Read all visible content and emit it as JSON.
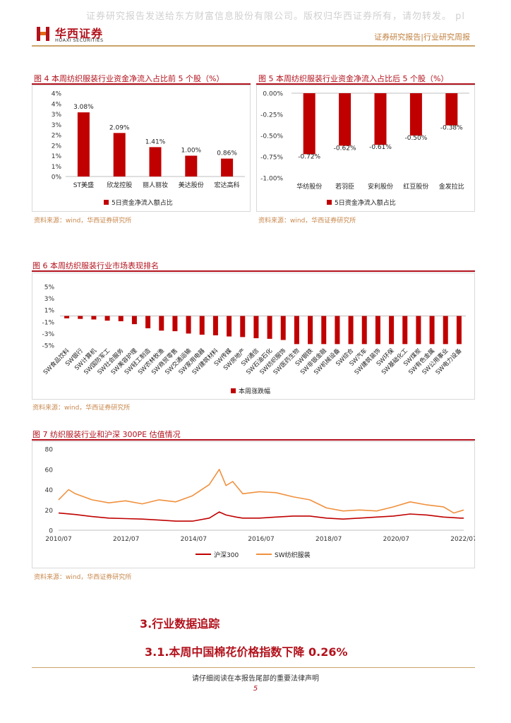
{
  "watermark": "证券研究报告发送给东方财富信息股份有限公司。版权归华西证券所有，请勿转发。 pl",
  "header": {
    "logo_cn": "华西证券",
    "logo_en": "HUAXI SECURITIES",
    "report_type": "证券研究报告|行业研究周报",
    "brand_color": "#b2121c"
  },
  "fig4": {
    "title": "图 4   本周纺织服装行业资金净流入占比前 5 个股（%）",
    "source": "资料来源：wind，华西证券研究所"
  },
  "fig5": {
    "title": "图 5   本周纺织服装行业资金净流入占比后 5 个股（%）",
    "source": "资料来源：wind，华西证券研究所"
  },
  "fig6": {
    "title": "图 6   本周纺织服装行业市场表现排名",
    "source": "资料来源：wind，华西证券研究所"
  },
  "fig7": {
    "title": "图 7   纺织服装行业和沪深 300PE 估值情况",
    "source": "资料来源：wind，华西证券研究所"
  },
  "section": {
    "h1": "3.行业数据追踪",
    "h2": "3.1.本周中国棉花价格指数下降 0.26%"
  },
  "footer": {
    "disclaimer": "请仔细阅读在本报告尾部的重要法律声明",
    "page": "5"
  },
  "chart_data": [
    {
      "id": "fig4",
      "type": "bar",
      "categories": [
        "ST美盛",
        "欣龙控股",
        "丽人丽妆",
        "美达股份",
        "宏达高科"
      ],
      "values": [
        3.08,
        2.09,
        1.41,
        1.0,
        0.86
      ],
      "value_labels": [
        "3.08%",
        "2.09%",
        "1.41%",
        "1.00%",
        "0.86%"
      ],
      "ylim": [
        0,
        4
      ],
      "yticks": [
        "0%",
        "1%",
        "1%",
        "2%",
        "2%",
        "3%",
        "3%",
        "4%",
        "4%"
      ],
      "legend": "5日资金净流入额占比",
      "legend_position": "bottom",
      "color": "#c00000"
    },
    {
      "id": "fig5",
      "type": "bar",
      "categories": [
        "华纺股份",
        "若羽臣",
        "安利股份",
        "红豆股份",
        "金发拉比"
      ],
      "values": [
        -0.72,
        -0.62,
        -0.61,
        -0.5,
        -0.38
      ],
      "value_labels": [
        "-0.72%",
        "-0.62%",
        "-0.61%",
        "-0.50%",
        "-0.38%"
      ],
      "ylim": [
        -1.0,
        0
      ],
      "yticks": [
        "0.00%",
        "-0.25%",
        "-0.50%",
        "-0.75%",
        "-1.00%"
      ],
      "legend": "5日资金净流入额占比",
      "legend_position": "bottom",
      "color": "#c00000"
    },
    {
      "id": "fig6",
      "type": "bar",
      "categories": [
        "SW食品饮料",
        "SW银行",
        "SW计算机",
        "SW国防军工",
        "SW社会服务",
        "SW美容护理",
        "SW轻工制造",
        "SW农林牧渔",
        "SW商贸零售",
        "SW交通运输",
        "SW家用电器",
        "SW建筑材料",
        "SW传媒",
        "SW房地产",
        "SW通信",
        "SW石油石化",
        "SW纺织服饰",
        "SW医药生物",
        "SW钢铁",
        "SW非银金融",
        "SW机械设备",
        "SW综合",
        "SW汽车",
        "SW建筑装饰",
        "SW环保",
        "SW基础化工",
        "SW煤炭",
        "SW有色金属",
        "SW公用事业",
        "SW电力设备"
      ],
      "values": [
        -0.4,
        -0.5,
        -0.6,
        -0.8,
        -0.9,
        -1.4,
        -2.1,
        -2.5,
        -2.6,
        -3.0,
        -3.2,
        -3.3,
        -3.5,
        -3.6,
        -3.8,
        -3.9,
        -4.1,
        -4.8,
        -4.8,
        -4.8,
        -4.8,
        -4.8,
        -4.8,
        -4.8,
        -4.8,
        -4.8,
        -4.8,
        -4.8,
        -4.8,
        -4.8
      ],
      "ylim": [
        -5,
        5
      ],
      "yticks": [
        "5%",
        "3%",
        "1%",
        "-1%",
        "-3%",
        "-5%"
      ],
      "legend": "本周涨跌幅",
      "legend_position": "bottom",
      "color": "#c00000"
    },
    {
      "id": "fig7",
      "type": "line",
      "x_ticks": [
        "2010/07",
        "2012/07",
        "2014/07",
        "2016/07",
        "2018/07",
        "2020/07",
        "2022/07"
      ],
      "ylim": [
        0,
        80
      ],
      "yticks": [
        "0",
        "20",
        "40",
        "60",
        "80"
      ],
      "series": [
        {
          "name": "沪深300",
          "color": "#c00000",
          "x": [
            2010.5,
            2011.0,
            2011.5,
            2012.0,
            2012.5,
            2013.0,
            2013.5,
            2014.0,
            2014.5,
            2015.0,
            2015.3,
            2015.5,
            2015.8,
            2016.0,
            2016.5,
            2017.0,
            2017.5,
            2018.0,
            2018.5,
            2019.0,
            2019.5,
            2020.0,
            2020.5,
            2021.0,
            2021.5,
            2022.0,
            2022.5,
            2022.6
          ],
          "y": [
            17,
            15.5,
            13.5,
            12,
            11.5,
            11,
            10,
            9,
            9,
            12,
            18,
            15,
            13,
            12,
            12,
            13,
            14,
            14,
            12,
            11,
            12,
            13,
            14,
            16,
            15,
            13,
            12,
            12
          ]
        },
        {
          "name": "SW纺织服装",
          "color": "#f0913e",
          "x": [
            2010.5,
            2010.8,
            2011.0,
            2011.5,
            2012.0,
            2012.5,
            2013.0,
            2013.5,
            2014.0,
            2014.5,
            2015.0,
            2015.3,
            2015.5,
            2015.7,
            2016.0,
            2016.5,
            2017.0,
            2017.5,
            2018.0,
            2018.5,
            2019.0,
            2019.5,
            2020.0,
            2020.5,
            2021.0,
            2021.5,
            2022.0,
            2022.3,
            2022.6
          ],
          "y": [
            30,
            40,
            36,
            30,
            27,
            29,
            26,
            30,
            28,
            34,
            45,
            60,
            44,
            48,
            36,
            38,
            37,
            33,
            30,
            22,
            19,
            20,
            19,
            23,
            28,
            25,
            23,
            17,
            20
          ]
        }
      ]
    }
  ]
}
